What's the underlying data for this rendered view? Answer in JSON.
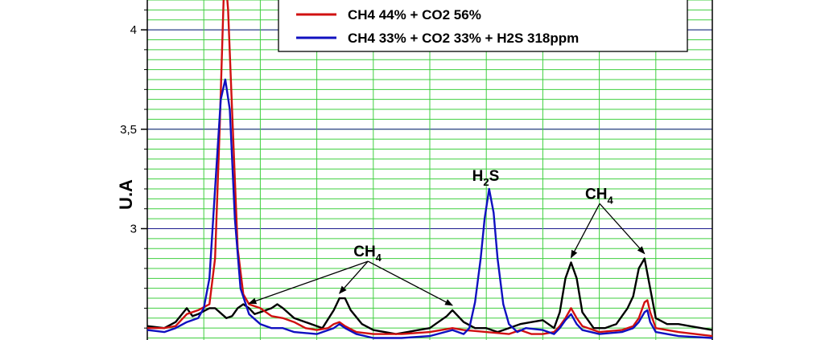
{
  "chart_data": {
    "type": "line",
    "ylabel": "U.A",
    "xlabel": "",
    "title": "",
    "ylim": [
      2.44,
      4.15
    ],
    "x_range": [
      0,
      100
    ],
    "grid": true,
    "yticks": [
      {
        "value": 3.0,
        "label": "3"
      },
      {
        "value": 3.5,
        "label": "3,5"
      },
      {
        "value": 4.0,
        "label": "4"
      }
    ],
    "legend": {
      "placement": "top-right",
      "entries": [
        {
          "name": "CH4 44% + CO2 56%",
          "color": "#d01010"
        },
        {
          "name": "CH4 33% + CO2 33% + H2S 318ppm",
          "color": "#1010c0"
        }
      ]
    },
    "series": [
      {
        "key": "black",
        "color": "#000000",
        "points": [
          [
            0,
            2.51
          ],
          [
            3,
            2.5
          ],
          [
            5,
            2.53
          ],
          [
            7,
            2.6
          ],
          [
            8,
            2.56
          ],
          [
            9,
            2.57
          ],
          [
            11,
            2.6
          ],
          [
            12,
            2.6
          ],
          [
            14,
            2.55
          ],
          [
            15,
            2.56
          ],
          [
            16,
            2.6
          ],
          [
            17,
            2.62
          ],
          [
            18,
            2.6
          ],
          [
            19,
            2.57
          ],
          [
            20,
            2.58
          ],
          [
            22,
            2.6
          ],
          [
            23,
            2.62
          ],
          [
            24,
            2.6
          ],
          [
            26,
            2.55
          ],
          [
            28,
            2.53
          ],
          [
            31,
            2.5
          ],
          [
            33,
            2.59
          ],
          [
            34,
            2.65
          ],
          [
            35,
            2.65
          ],
          [
            36,
            2.59
          ],
          [
            38,
            2.52
          ],
          [
            40,
            2.49
          ],
          [
            44,
            2.47
          ],
          [
            48,
            2.49
          ],
          [
            50,
            2.5
          ],
          [
            51,
            2.52
          ],
          [
            53,
            2.56
          ],
          [
            54,
            2.59
          ],
          [
            56,
            2.53
          ],
          [
            58,
            2.5
          ],
          [
            60,
            2.5
          ],
          [
            62,
            2.48
          ],
          [
            64,
            2.5
          ],
          [
            66,
            2.52
          ],
          [
            68,
            2.53
          ],
          [
            70,
            2.54
          ],
          [
            72,
            2.5
          ],
          [
            73,
            2.58
          ],
          [
            74,
            2.75
          ],
          [
            75,
            2.83
          ],
          [
            76,
            2.75
          ],
          [
            77,
            2.58
          ],
          [
            79,
            2.5
          ],
          [
            81,
            2.5
          ],
          [
            83,
            2.52
          ],
          [
            85,
            2.6
          ],
          [
            86,
            2.66
          ],
          [
            87,
            2.8
          ],
          [
            88,
            2.85
          ],
          [
            89,
            2.7
          ],
          [
            90,
            2.55
          ],
          [
            92,
            2.52
          ],
          [
            94,
            2.52
          ],
          [
            96,
            2.51
          ],
          [
            100,
            2.49
          ]
        ]
      },
      {
        "key": "red",
        "color": "#d01010",
        "points": [
          [
            0,
            2.5
          ],
          [
            3,
            2.5
          ],
          [
            5,
            2.51
          ],
          [
            7,
            2.57
          ],
          [
            9,
            2.59
          ],
          [
            11,
            2.62
          ],
          [
            12,
            2.85
          ],
          [
            12.8,
            3.5
          ],
          [
            13.5,
            4.15
          ],
          [
            13.8,
            4.28
          ],
          [
            14.3,
            4.1
          ],
          [
            15,
            3.6
          ],
          [
            16,
            2.9
          ],
          [
            17,
            2.67
          ],
          [
            18,
            2.62
          ],
          [
            20,
            2.6
          ],
          [
            22,
            2.56
          ],
          [
            24,
            2.55
          ],
          [
            26,
            2.53
          ],
          [
            28,
            2.5
          ],
          [
            30,
            2.49
          ],
          [
            32,
            2.5
          ],
          [
            33,
            2.52
          ],
          [
            34,
            2.53
          ],
          [
            35,
            2.51
          ],
          [
            37,
            2.48
          ],
          [
            40,
            2.47
          ],
          [
            45,
            2.47
          ],
          [
            50,
            2.48
          ],
          [
            54,
            2.5
          ],
          [
            56,
            2.49
          ],
          [
            60,
            2.48
          ],
          [
            64,
            2.47
          ],
          [
            66,
            2.49
          ],
          [
            68,
            2.47
          ],
          [
            70,
            2.47
          ],
          [
            72,
            2.48
          ],
          [
            73,
            2.51
          ],
          [
            74,
            2.55
          ],
          [
            75,
            2.6
          ],
          [
            76,
            2.55
          ],
          [
            77,
            2.51
          ],
          [
            80,
            2.48
          ],
          [
            84,
            2.49
          ],
          [
            86,
            2.51
          ],
          [
            87,
            2.55
          ],
          [
            88,
            2.63
          ],
          [
            88.5,
            2.64
          ],
          [
            89,
            2.58
          ],
          [
            90,
            2.5
          ],
          [
            94,
            2.48
          ],
          [
            100,
            2.46
          ]
        ]
      },
      {
        "key": "blue",
        "color": "#1010c0",
        "points": [
          [
            0,
            2.49
          ],
          [
            3,
            2.48
          ],
          [
            5,
            2.5
          ],
          [
            7,
            2.53
          ],
          [
            9,
            2.55
          ],
          [
            10,
            2.6
          ],
          [
            11,
            2.75
          ],
          [
            12,
            3.2
          ],
          [
            13,
            3.65
          ],
          [
            13.8,
            3.75
          ],
          [
            14.6,
            3.6
          ],
          [
            15.5,
            3.05
          ],
          [
            16.5,
            2.7
          ],
          [
            18,
            2.57
          ],
          [
            20,
            2.52
          ],
          [
            22,
            2.5
          ],
          [
            24,
            2.5
          ],
          [
            26,
            2.48
          ],
          [
            30,
            2.47
          ],
          [
            33,
            2.5
          ],
          [
            34,
            2.52
          ],
          [
            35,
            2.5
          ],
          [
            37,
            2.47
          ],
          [
            40,
            2.45
          ],
          [
            45,
            2.45
          ],
          [
            50,
            2.46
          ],
          [
            54,
            2.49
          ],
          [
            56,
            2.47
          ],
          [
            57,
            2.5
          ],
          [
            58,
            2.63
          ],
          [
            59,
            2.85
          ],
          [
            59.7,
            3.05
          ],
          [
            60.5,
            3.2
          ],
          [
            61.3,
            3.08
          ],
          [
            62,
            2.85
          ],
          [
            63,
            2.62
          ],
          [
            64,
            2.52
          ],
          [
            65.5,
            2.48
          ],
          [
            67,
            2.5
          ],
          [
            70,
            2.49
          ],
          [
            72,
            2.47
          ],
          [
            73,
            2.5
          ],
          [
            74,
            2.54
          ],
          [
            75,
            2.57
          ],
          [
            76,
            2.52
          ],
          [
            77,
            2.49
          ],
          [
            80,
            2.47
          ],
          [
            84,
            2.48
          ],
          [
            86,
            2.5
          ],
          [
            87,
            2.53
          ],
          [
            88,
            2.58
          ],
          [
            88.5,
            2.59
          ],
          [
            89,
            2.53
          ],
          [
            90,
            2.48
          ],
          [
            94,
            2.46
          ],
          [
            100,
            2.45
          ]
        ]
      }
    ],
    "annotations": [
      {
        "text": "H",
        "sub": "2",
        "tail": "S",
        "x": 57.5,
        "y": 3.24
      },
      {
        "text": "CH",
        "sub": "4",
        "tail": "",
        "x": 36.5,
        "y": 2.86
      },
      {
        "text": "CH",
        "sub": "4",
        "tail": "",
        "x": 77.5,
        "y": 3.15
      }
    ]
  }
}
